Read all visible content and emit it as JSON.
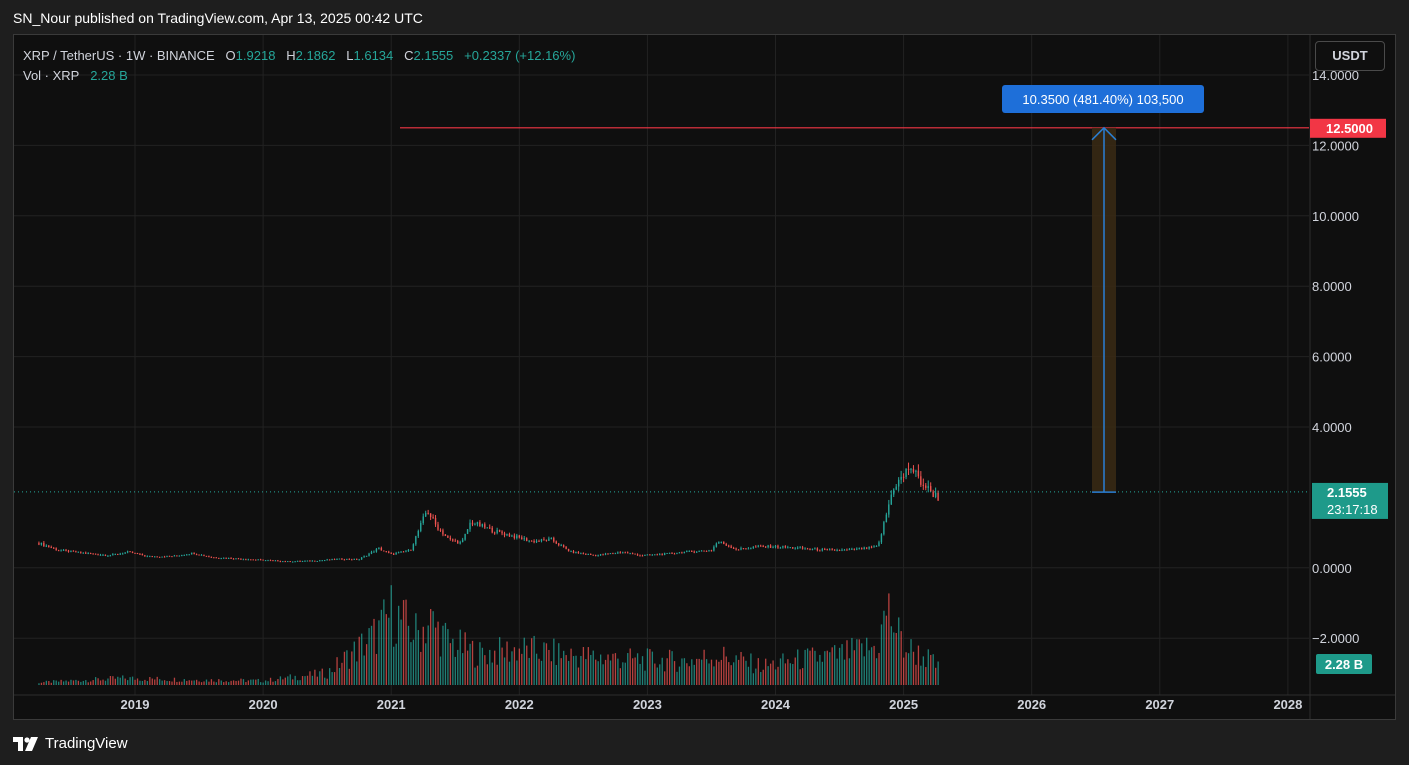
{
  "header": {
    "title": "SN_Nour published on TradingView.com, Apr 13, 2025 00:42 UTC"
  },
  "legend": {
    "symbol": "XRP / TetherUS · 1W · BINANCE",
    "open_label": "O",
    "open_value": "1.9218",
    "high_label": "H",
    "high_value": "2.1862",
    "low_label": "L",
    "low_value": "1.6134",
    "close_label": "C",
    "close_value": "2.1555",
    "change_value": "+0.2337 (+12.16%)",
    "vol_label": "Vol · XRP",
    "vol_value": "2.28 B"
  },
  "unit_button": "USDT",
  "footer": {
    "brand": "TradingView"
  },
  "chart_data": {
    "type": "candlestick",
    "symbol": "XRP / TetherUS",
    "interval": "1W",
    "exchange": "BINANCE",
    "x_ticks": [
      "2019",
      "2020",
      "2021",
      "2022",
      "2023",
      "2024",
      "2025",
      "2026",
      "2027",
      "2028"
    ],
    "y_ticks": [
      "14.0000",
      "12.0000",
      "10.0000",
      "8.0000",
      "6.0000",
      "4.0000",
      "0.0000",
      "−2.0000"
    ],
    "ylim": [
      -3.4,
      14.4
    ],
    "grid": true,
    "current_price": 2.1555,
    "current_price_label": "2.1555",
    "countdown_label": "23:17:18",
    "volume_label": "2.28 B",
    "target_line": {
      "value": 12.5,
      "label": "12.5000"
    },
    "measure": {
      "from": 2.15,
      "to": 12.5,
      "label": "10.3500 (481.40%) 103,500"
    },
    "price_path": [
      [
        2018.25,
        0.7
      ],
      [
        2018.4,
        0.5
      ],
      [
        2018.6,
        0.42
      ],
      [
        2018.8,
        0.35
      ],
      [
        2018.95,
        0.45
      ],
      [
        2019.1,
        0.32
      ],
      [
        2019.3,
        0.33
      ],
      [
        2019.45,
        0.42
      ],
      [
        2019.6,
        0.3
      ],
      [
        2019.8,
        0.26
      ],
      [
        2020.0,
        0.22
      ],
      [
        2020.2,
        0.18
      ],
      [
        2020.4,
        0.2
      ],
      [
        2020.6,
        0.25
      ],
      [
        2020.75,
        0.24
      ],
      [
        2020.9,
        0.55
      ],
      [
        2021.0,
        0.38
      ],
      [
        2021.15,
        0.5
      ],
      [
        2021.28,
        1.65
      ],
      [
        2021.35,
        1.2
      ],
      [
        2021.45,
        0.8
      ],
      [
        2021.55,
        0.7
      ],
      [
        2021.62,
        1.3
      ],
      [
        2021.8,
        1.05
      ],
      [
        2021.95,
        0.9
      ],
      [
        2022.1,
        0.75
      ],
      [
        2022.25,
        0.8
      ],
      [
        2022.4,
        0.45
      ],
      [
        2022.6,
        0.35
      ],
      [
        2022.8,
        0.45
      ],
      [
        2022.95,
        0.35
      ],
      [
        2023.1,
        0.38
      ],
      [
        2023.3,
        0.45
      ],
      [
        2023.5,
        0.5
      ],
      [
        2023.55,
        0.75
      ],
      [
        2023.7,
        0.52
      ],
      [
        2023.85,
        0.6
      ],
      [
        2024.0,
        0.6
      ],
      [
        2024.2,
        0.55
      ],
      [
        2024.4,
        0.5
      ],
      [
        2024.55,
        0.5
      ],
      [
        2024.7,
        0.55
      ],
      [
        2024.8,
        0.6
      ],
      [
        2024.85,
        1.3
      ],
      [
        2024.92,
        2.3
      ],
      [
        2025.0,
        2.6
      ],
      [
        2025.05,
        2.9
      ],
      [
        2025.12,
        2.5
      ],
      [
        2025.2,
        2.2
      ],
      [
        2025.27,
        2.0
      ]
    ],
    "volume_series": [
      [
        2018.25,
        0.03
      ],
      [
        2018.9,
        0.08
      ],
      [
        2019.5,
        0.06
      ],
      [
        2020.0,
        0.05
      ],
      [
        2020.5,
        0.14
      ],
      [
        2020.9,
        0.62
      ],
      [
        2021.0,
        0.85
      ],
      [
        2021.2,
        0.6
      ],
      [
        2021.3,
        0.75
      ],
      [
        2021.45,
        0.5
      ],
      [
        2021.7,
        0.36
      ],
      [
        2022.0,
        0.42
      ],
      [
        2022.4,
        0.35
      ],
      [
        2022.9,
        0.3
      ],
      [
        2023.3,
        0.28
      ],
      [
        2023.55,
        0.35
      ],
      [
        2023.9,
        0.22
      ],
      [
        2024.2,
        0.3
      ],
      [
        2024.5,
        0.35
      ],
      [
        2024.8,
        0.45
      ],
      [
        2024.87,
        0.9
      ],
      [
        2025.0,
        0.45
      ],
      [
        2025.2,
        0.3
      ],
      [
        2025.27,
        0.2
      ]
    ]
  },
  "colors": {
    "background": "#0f0f0f",
    "up": "#26a69a",
    "down": "#ef5350",
    "target": "#f23645",
    "measure": "#2a7fd4",
    "measure_fill": "#3a2a14",
    "grid": "#222222"
  }
}
